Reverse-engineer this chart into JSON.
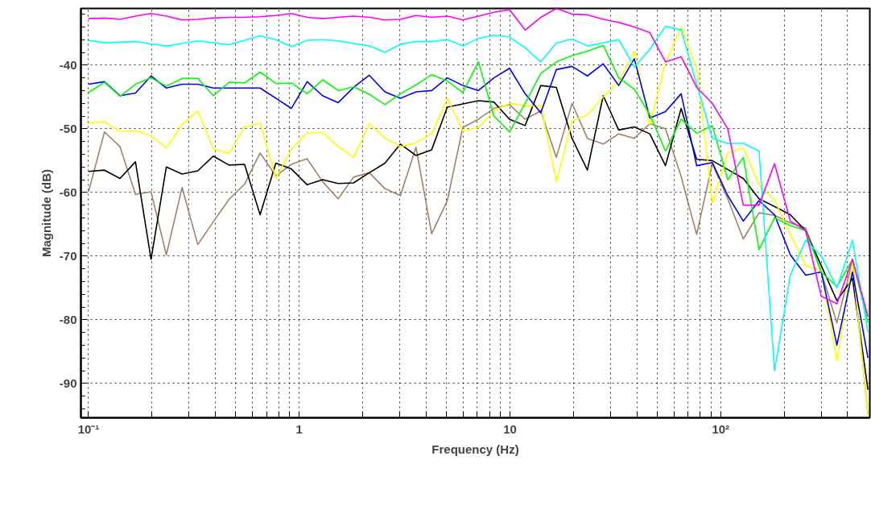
{
  "chart_data": {
    "type": "line",
    "xlabel": "Frequency (Hz)",
    "ylabel": "Magnitude (dB)",
    "log": "x",
    "grid": true,
    "marker": "none",
    "line_style": "solid",
    "xlim": [
      0.092,
      510
    ],
    "ylim": [
      -95.4,
      -31.1
    ],
    "xticks": [
      {
        "value": 0.1,
        "label": "10⁻¹"
      },
      {
        "value": 0.2,
        "label": null
      },
      {
        "value": 0.3,
        "label": null
      },
      {
        "value": 0.4,
        "label": null
      },
      {
        "value": 0.5,
        "label": null
      },
      {
        "value": 0.6,
        "label": null
      },
      {
        "value": 0.7,
        "label": null
      },
      {
        "value": 0.8,
        "label": null
      },
      {
        "value": 0.9,
        "label": null
      },
      1,
      {
        "value": 2,
        "label": null
      },
      {
        "value": 3,
        "label": null
      },
      {
        "value": 4,
        "label": null
      },
      {
        "value": 5,
        "label": null
      },
      {
        "value": 6,
        "label": null
      },
      {
        "value": 7,
        "label": null
      },
      {
        "value": 8,
        "label": null
      },
      {
        "value": 9,
        "label": null
      },
      10,
      {
        "value": 20,
        "label": null
      },
      {
        "value": 30,
        "label": null
      },
      {
        "value": 40,
        "label": null
      },
      {
        "value": 50,
        "label": null
      },
      {
        "value": 60,
        "label": null
      },
      {
        "value": 70,
        "label": null
      },
      {
        "value": 80,
        "label": null
      },
      {
        "value": 90,
        "label": null
      },
      {
        "value": 100,
        "label": "10²"
      },
      {
        "value": 200,
        "label": null
      },
      {
        "value": 300,
        "label": null
      },
      {
        "value": 400,
        "label": null
      }
    ],
    "yticks": [
      -90,
      -80,
      -70,
      -60,
      -50,
      -40
    ],
    "x": [
      0.1,
      0.119,
      0.141,
      0.167,
      0.198,
      0.234,
      0.278,
      0.33,
      0.391,
      0.464,
      0.55,
      0.652,
      0.774,
      0.917,
      1.09,
      1.29,
      1.53,
      1.81,
      2.15,
      2.55,
      3.02,
      3.58,
      4.25,
      5.04,
      5.97,
      7.08,
      8.39,
      9.95,
      11.8,
      14.0,
      16.6,
      19.7,
      23.3,
      27.7,
      32.8,
      38.9,
      46.1,
      54.7,
      64.9,
      76.9,
      91.2,
      108,
      128,
      152,
      180,
      214,
      253,
      300,
      356,
      422,
      500
    ],
    "series": [
      {
        "color": "#ff00ff",
        "values": [
          -32.7,
          -32.6,
          -32.8,
          -32.3,
          -31.9,
          -32.3,
          -32.9,
          -32.8,
          -32.6,
          -32.5,
          -32.5,
          -32.4,
          -32.2,
          -31.9,
          -32.5,
          -32.7,
          -32.5,
          -32.3,
          -32.5,
          -32.9,
          -32.8,
          -32.2,
          -32.5,
          -32.3,
          -32.9,
          -32.3,
          -31.7,
          -31.3,
          -34.5,
          -32.5,
          -31.1,
          -32.0,
          -32.1,
          -32.8,
          -33.3,
          -34.0,
          -34.9,
          -39.5,
          -38.7,
          -43.5,
          -46.0,
          -50.0,
          -62.0,
          -62.0,
          -55.5,
          -64.5,
          -66.0,
          -76.3,
          -77.5,
          -70.5,
          -79.5
        ]
      },
      {
        "color": "#00ffff",
        "values": [
          -36.1,
          -36.5,
          -36.4,
          -36.3,
          -36.7,
          -37.0,
          -36.6,
          -36.2,
          -36.5,
          -36.8,
          -36.1,
          -35.4,
          -36.0,
          -37.1,
          -36.1,
          -36.0,
          -36.2,
          -36.6,
          -37.0,
          -38.0,
          -36.7,
          -36.3,
          -36.3,
          -36.0,
          -37.0,
          -35.8,
          -35.3,
          -35.6,
          -37.3,
          -39.5,
          -36.5,
          -35.9,
          -37.0,
          -36.5,
          -36.0,
          -40.3,
          -37.5,
          -33.9,
          -34.5,
          -43.0,
          -51.5,
          -52.3,
          -52.3,
          -53.5,
          -88.0,
          -73.0,
          -67.5,
          -70.0,
          -75.0,
          -67.5,
          -82.0
        ]
      },
      {
        "color": "#00ff00",
        "values": [
          -44.3,
          -42.7,
          -44.9,
          -43.0,
          -42.0,
          -43.3,
          -42.1,
          -42.1,
          -44.8,
          -42.7,
          -42.8,
          -41.1,
          -42.9,
          -42.8,
          -44.5,
          -42.3,
          -44.0,
          -43.4,
          -44.6,
          -46.2,
          -44.5,
          -43.1,
          -41.5,
          -42.5,
          -44.3,
          -39.5,
          -48.0,
          -50.5,
          -46.0,
          -41.3,
          -39.5,
          -38.5,
          -37.8,
          -36.9,
          -42.0,
          -43.8,
          -47.8,
          -53.5,
          -48.5,
          -50.7,
          -49.5,
          -58.0,
          -54.5,
          -69.0,
          -64.0,
          -65.2,
          -66.0,
          -72.5,
          -74.8,
          -70.5,
          -80.4
        ]
      },
      {
        "color": "#0000ff",
        "values": [
          -43.0,
          -42.6,
          -44.8,
          -44.4,
          -41.7,
          -43.6,
          -43.0,
          -43.0,
          -43.6,
          -43.6,
          -43.6,
          -43.6,
          -45.2,
          -46.8,
          -42.6,
          -44.8,
          -45.9,
          -43.5,
          -41.6,
          -44.2,
          -45.2,
          -44.2,
          -44.0,
          -42.0,
          -43.2,
          -44.0,
          -42.0,
          -40.5,
          -44.5,
          -47.5,
          -40.7,
          -40.2,
          -41.7,
          -39.8,
          -43.2,
          -39.0,
          -48.3,
          -47.3,
          -44.5,
          -55.8,
          -55.3,
          -60.5,
          -64.5,
          -61.3,
          -63.5,
          -69.8,
          -73.0,
          -72.5,
          -84.0,
          -72.5,
          -86.0
        ]
      },
      {
        "color": "#ffff00",
        "values": [
          -49.1,
          -48.9,
          -50.4,
          -50.3,
          -51.1,
          -53.0,
          -49.3,
          -47.2,
          -53.2,
          -53.9,
          -49.7,
          -49.1,
          -57.8,
          -53.2,
          -50.6,
          -50.6,
          -52.8,
          -54.5,
          -49.2,
          -51.5,
          -52.8,
          -52.2,
          -50.8,
          -45.2,
          -50.4,
          -49.8,
          -47.2,
          -46.0,
          -46.4,
          -46.4,
          -58.3,
          -48.8,
          -47.8,
          -45.0,
          -42.6,
          -37.8,
          -49.3,
          -39.6,
          -34.0,
          -40.5,
          -61.6,
          -53.8,
          -53.0,
          -58.8,
          -61.2,
          -66.6,
          -71.5,
          -72.3,
          -86.5,
          -71.0,
          -95.0
        ]
      },
      {
        "color": "#000000",
        "values": [
          -56.7,
          -56.5,
          -57.8,
          -55.2,
          -70.5,
          -56.0,
          -57.1,
          -56.6,
          -54.3,
          -55.7,
          -55.6,
          -63.5,
          -55.4,
          -56.3,
          -58.8,
          -58.0,
          -58.6,
          -58.5,
          -56.9,
          -55.4,
          -52.4,
          -54.2,
          -53.3,
          -46.6,
          -46.1,
          -45.6,
          -45.8,
          -48.5,
          -49.5,
          -43.2,
          -43.5,
          -51.5,
          -56.5,
          -44.8,
          -50.2,
          -49.7,
          -50.8,
          -55.8,
          -46.8,
          -54.8,
          -55.0,
          -56.4,
          -57.8,
          -61.0,
          -62.2,
          -63.5,
          -66.0,
          -71.5,
          -77.0,
          -73.5,
          -91.0
        ]
      },
      {
        "color": "#a0826d",
        "values": [
          -59.9,
          -50.5,
          -52.8,
          -60.3,
          -59.9,
          -69.8,
          -59.2,
          -68.2,
          -64.6,
          -61.1,
          -58.7,
          -53.8,
          -57.4,
          -55.6,
          -54.7,
          -58.3,
          -61.0,
          -57.6,
          -56.9,
          -59.4,
          -60.5,
          -52.9,
          -66.5,
          -61.3,
          -49.8,
          -48.5,
          -46.8,
          -46.2,
          -48.5,
          -47.2,
          -54.5,
          -46.0,
          -51.5,
          -52.4,
          -50.8,
          -51.5,
          -49.2,
          -50.0,
          -57.5,
          -66.6,
          -55.5,
          -61.0,
          -67.3,
          -63.2,
          -63.6,
          -64.8,
          -65.6,
          -72.5,
          -80.5,
          -70.8,
          -95.0
        ]
      }
    ]
  }
}
